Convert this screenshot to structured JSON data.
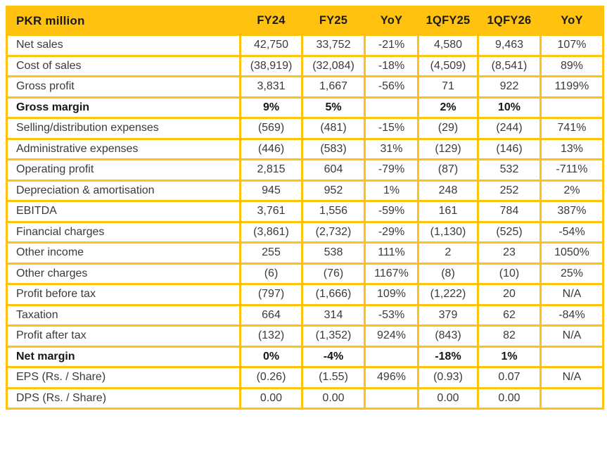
{
  "chart_data": {
    "type": "table",
    "title_cell": "PKR million",
    "columns": [
      "FY24",
      "FY25",
      "YoY",
      "1QFY25",
      "1QFY26",
      "YoY"
    ],
    "rows": [
      {
        "label": "Net sales",
        "bold": false,
        "values": [
          "42,750",
          "33,752",
          "-21%",
          "4,580",
          "9,463",
          "107%"
        ]
      },
      {
        "label": "Cost of sales",
        "bold": false,
        "values": [
          "(38,919)",
          "(32,084)",
          "-18%",
          "(4,509)",
          "(8,541)",
          "89%"
        ]
      },
      {
        "label": "Gross profit",
        "bold": false,
        "values": [
          "3,831",
          "1,667",
          "-56%",
          "71",
          "922",
          "1199%"
        ]
      },
      {
        "label": "Gross margin",
        "bold": true,
        "values": [
          "9%",
          "5%",
          "",
          "2%",
          "10%",
          ""
        ]
      },
      {
        "label": "Selling/distribution expenses",
        "bold": false,
        "values": [
          "(569)",
          "(481)",
          "-15%",
          "(29)",
          "(244)",
          "741%"
        ]
      },
      {
        "label": "Administrative expenses",
        "bold": false,
        "values": [
          "(446)",
          "(583)",
          "31%",
          "(129)",
          "(146)",
          "13%"
        ]
      },
      {
        "label": "Operating profit",
        "bold": false,
        "values": [
          "2,815",
          "604",
          "-79%",
          "(87)",
          "532",
          "-711%"
        ]
      },
      {
        "label": "Depreciation & amortisation",
        "bold": false,
        "values": [
          "945",
          "952",
          "1%",
          "248",
          "252",
          "2%"
        ]
      },
      {
        "label": "EBITDA",
        "bold": false,
        "values": [
          "3,761",
          "1,556",
          "-59%",
          "161",
          "784",
          "387%"
        ]
      },
      {
        "label": "Financial charges",
        "bold": false,
        "values": [
          "(3,861)",
          "(2,732)",
          "-29%",
          "(1,130)",
          "(525)",
          "-54%"
        ]
      },
      {
        "label": "Other income",
        "bold": false,
        "values": [
          "255",
          "538",
          "111%",
          "2",
          "23",
          "1050%"
        ]
      },
      {
        "label": "Other charges",
        "bold": false,
        "values": [
          "(6)",
          "(76)",
          "1167%",
          "(8)",
          "(10)",
          "25%"
        ]
      },
      {
        "label": "Profit before tax",
        "bold": false,
        "values": [
          "(797)",
          "(1,666)",
          "109%",
          "(1,222)",
          "20",
          "N/A"
        ]
      },
      {
        "label": "Taxation",
        "bold": false,
        "values": [
          "664",
          "314",
          "-53%",
          "379",
          "62",
          "-84%"
        ]
      },
      {
        "label": "Profit after tax",
        "bold": false,
        "values": [
          "(132)",
          "(1,352)",
          "924%",
          "(843)",
          "82",
          "N/A"
        ]
      },
      {
        "label": "Net margin",
        "bold": true,
        "values": [
          "0%",
          "-4%",
          "",
          "-18%",
          "1%",
          ""
        ]
      },
      {
        "label": "EPS (Rs. / Share)",
        "bold": false,
        "values": [
          "(0.26)",
          "(1.55)",
          "496%",
          "(0.93)",
          "0.07",
          "N/A"
        ]
      },
      {
        "label": "DPS (Rs. / Share)",
        "bold": false,
        "values": [
          "0.00",
          "0.00",
          "",
          "0.00",
          "0.00",
          ""
        ]
      }
    ],
    "colors": {
      "accent": "#FFC20E",
      "header_text": "#1a1a1a",
      "body_text": "#3a3a3a"
    }
  }
}
